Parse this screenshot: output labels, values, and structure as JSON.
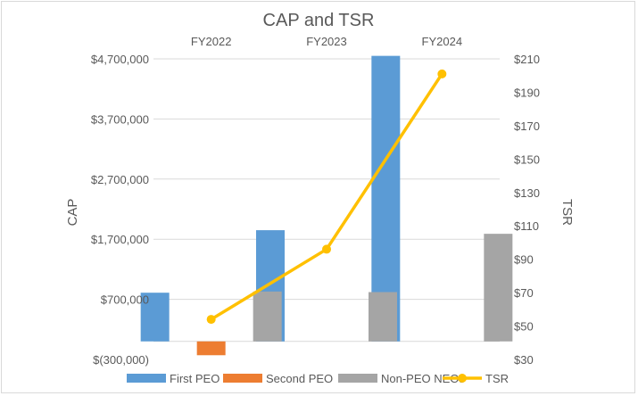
{
  "chart_data": {
    "type": "bar",
    "title": "CAP and TSR",
    "categories": [
      "FY2022",
      "FY2023",
      "FY2024"
    ],
    "series": [
      {
        "name": "First PEO",
        "kind": "bar",
        "axis": "left",
        "color": "#5b9bd5",
        "values": [
          810000,
          1850000,
          4750000
        ]
      },
      {
        "name": "Second PEO",
        "kind": "bar",
        "axis": "left",
        "color": "#ed7d31",
        "values": [
          -230000,
          null,
          null
        ]
      },
      {
        "name": "Non-PEO NEOs",
        "kind": "bar",
        "axis": "left",
        "color": "#a5a5a5",
        "values": [
          830000,
          820000,
          1790000
        ]
      },
      {
        "name": "TSR",
        "kind": "line",
        "axis": "right",
        "color": "#ffc000",
        "values": [
          54,
          96,
          201
        ]
      }
    ],
    "y_left": {
      "label": "CAP",
      "min": -300000,
      "max": 4700000,
      "ticks": [
        -300000,
        700000,
        1700000,
        2700000,
        3700000,
        4700000
      ],
      "tick_labels": [
        "$(300,000)",
        "$700,000",
        "$1,700,000",
        "$2,700,000",
        "$3,700,000",
        "$4,700,000"
      ]
    },
    "y_right": {
      "label": "TSR",
      "min": 30,
      "max": 210,
      "ticks": [
        30,
        50,
        70,
        90,
        110,
        130,
        150,
        170,
        190,
        210
      ],
      "tick_labels": [
        "$30",
        "$50",
        "$70",
        "$90",
        "$110",
        "$130",
        "$150",
        "$170",
        "$190",
        "$210"
      ]
    },
    "grid": true,
    "legend_position": "bottom"
  }
}
